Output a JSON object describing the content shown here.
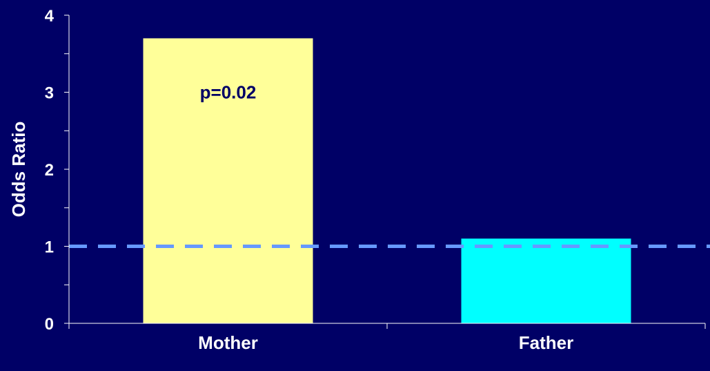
{
  "chart_data": {
    "type": "bar",
    "categories": [
      "Mother",
      "Father"
    ],
    "values": [
      3.7,
      1.1
    ],
    "bar_colors": [
      "#ffff99",
      "#00ffff"
    ],
    "ylabel": "Odds Ratio",
    "ylim": [
      0,
      4
    ],
    "yticks": [
      "0",
      "1",
      "2",
      "3",
      "4"
    ],
    "reference_line": {
      "value": 1.0,
      "style": "dashed",
      "color": "#6699ff"
    },
    "annotations": [
      {
        "category": "Mother",
        "text": "p=0.02"
      }
    ],
    "grid": false,
    "legend": "none",
    "background_color": "#000066",
    "axis_color": "#ffffff"
  }
}
